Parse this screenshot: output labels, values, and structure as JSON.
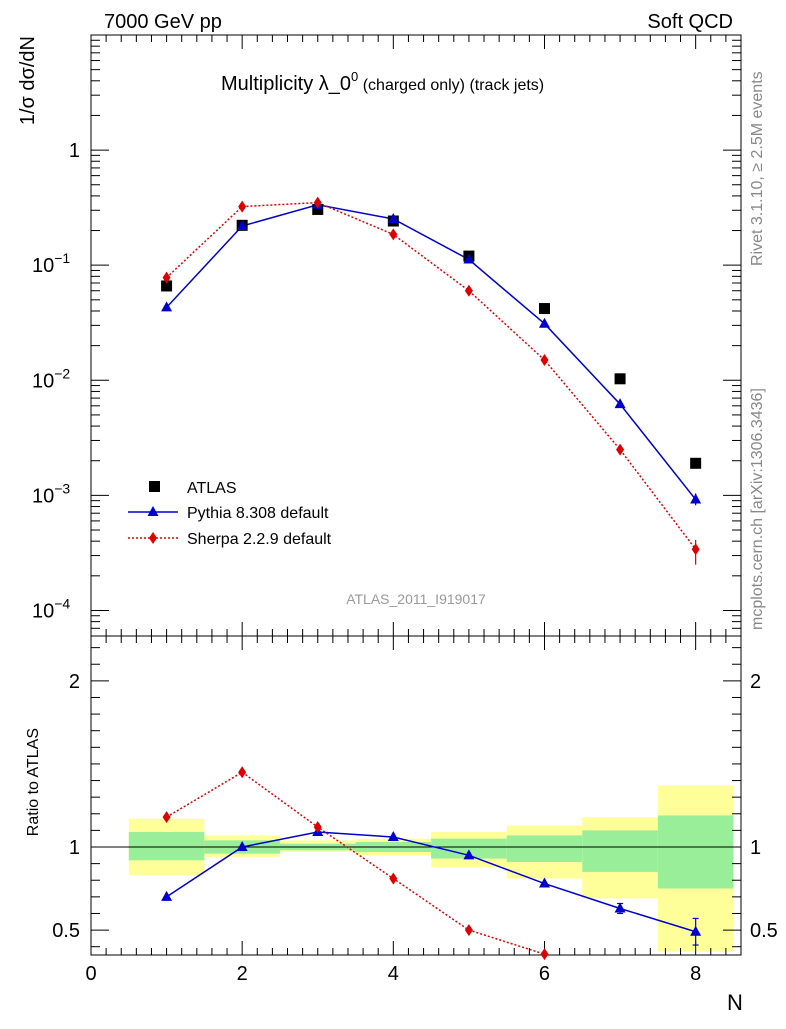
{
  "header": {
    "energy": "7000 GeV pp",
    "category": "Soft QCD"
  },
  "side_text": {
    "rivet": "Rivet 3.1.10, ≥ 2.5M events",
    "mcplots": "mcplots.cern.ch [arXiv:1306.3436]"
  },
  "chart_data": [
    {
      "type": "line",
      "title_main": "Multiplicity λ_0",
      "title_sup": "0",
      "title_sub": " (charged only) (track jets)",
      "ylabel": "1/σ dσ/dN",
      "yscale": "log",
      "ylim": [
        6e-05,
        10
      ],
      "xlim": [
        0,
        8.6
      ],
      "yticks": [
        {
          "value": 1,
          "base": "1",
          "exp": ""
        },
        {
          "value": 0.1,
          "base": "10",
          "exp": "−1"
        },
        {
          "value": 0.01,
          "base": "10",
          "exp": "−2"
        },
        {
          "value": 0.001,
          "base": "10",
          "exp": "−3"
        },
        {
          "value": 0.0001,
          "base": "10",
          "exp": "−4"
        }
      ],
      "analysis_label": "ATLAS_2011_I919017",
      "legend_position": "lower-left",
      "x": [
        1,
        2,
        3,
        4,
        5,
        6,
        7,
        8
      ],
      "series": [
        {
          "name": "ATLAS",
          "marker": "square",
          "color": "#000000",
          "values": [
            0.066,
            0.222,
            0.305,
            0.242,
            0.12,
            0.042,
            0.0103,
            0.0019
          ]
        },
        {
          "name": "Pythia 8.308 default",
          "marker": "triangle",
          "color": "#0000cc",
          "line": "solid",
          "values": [
            0.043,
            0.219,
            0.335,
            0.252,
            0.112,
            0.031,
            0.0062,
            0.00092
          ]
        },
        {
          "name": "Sherpa 2.2.9 default",
          "marker": "diamond",
          "color": "#dd0000",
          "line": "dotted",
          "values": [
            0.078,
            0.323,
            0.35,
            0.185,
            0.06,
            0.015,
            0.0025,
            0.00034
          ]
        }
      ]
    },
    {
      "type": "line",
      "ylabel": "Ratio to ATLAS",
      "ylim": [
        0.35,
        2.27
      ],
      "xlim": [
        0,
        8.6
      ],
      "xlabel": "N",
      "xticks": [
        0,
        2,
        4,
        6,
        8
      ],
      "yticks": [
        0.5,
        1,
        2
      ],
      "reference_line": 1,
      "bands": [
        {
          "x": [
            0.5,
            1.5
          ],
          "yellow": [
            0.83,
            1.17
          ],
          "green": [
            0.92,
            1.09
          ]
        },
        {
          "x": [
            1.5,
            2.5
          ],
          "yellow": [
            0.94,
            1.07
          ],
          "green": [
            0.96,
            1.04
          ]
        },
        {
          "x": [
            2.5,
            3.5
          ],
          "yellow": [
            0.97,
            1.04
          ],
          "green": [
            0.98,
            1.02
          ]
        },
        {
          "x": [
            3.5,
            4.5
          ],
          "yellow": [
            0.95,
            1.05
          ],
          "green": [
            0.97,
            1.03
          ]
        },
        {
          "x": [
            4.5,
            5.5
          ],
          "yellow": [
            0.88,
            1.09
          ],
          "green": [
            0.93,
            1.05
          ]
        },
        {
          "x": [
            5.5,
            6.5
          ],
          "yellow": [
            0.81,
            1.13
          ],
          "green": [
            0.91,
            1.07
          ]
        },
        {
          "x": [
            6.5,
            7.5
          ],
          "yellow": [
            0.69,
            1.18
          ],
          "green": [
            0.85,
            1.1
          ]
        },
        {
          "x": [
            7.5,
            8.5
          ],
          "yellow": [
            0.37,
            1.37
          ],
          "green": [
            0.75,
            1.19
          ]
        }
      ],
      "series": [
        {
          "name": "Pythia 8.308 default",
          "marker": "triangle",
          "color": "#0000cc",
          "line": "solid",
          "values": [
            0.7,
            1.0,
            1.09,
            1.06,
            0.95,
            0.78,
            0.63,
            0.49
          ]
        },
        {
          "name": "Sherpa 2.2.9 default",
          "marker": "diamond",
          "color": "#dd0000",
          "line": "dotted",
          "values": [
            1.18,
            1.45,
            1.12,
            0.81,
            0.5,
            0.355,
            null,
            null
          ]
        }
      ]
    }
  ]
}
